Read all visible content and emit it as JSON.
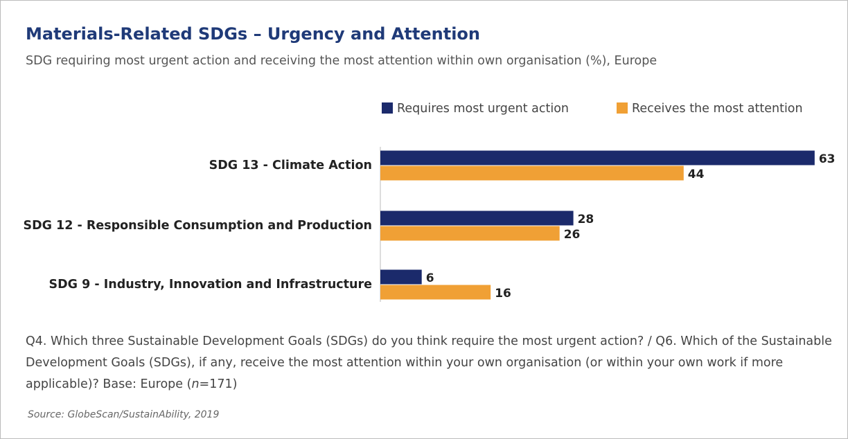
{
  "chart_data": {
    "type": "hbar",
    "title": "Materials-Related SDGs – Urgency and Attention",
    "subtitle": "SDG requiring most urgent action and receiving the most attention within own organisation (%), Europe",
    "categories": [
      "SDG 13 - Climate Action",
      "SDG 12 - Responsible Consumption and Production",
      "SDG 9 - Industry, Innovation and Infrastructure"
    ],
    "series": [
      {
        "name": "Requires most urgent action",
        "color": "#1b2a6b",
        "values": [
          63,
          28,
          6
        ]
      },
      {
        "name": "Receives the most attention",
        "color": "#f0a035",
        "values": [
          44,
          26,
          16
        ]
      }
    ],
    "note": [
      "Q4. Which three Sustainable Development Goals (SDGs) do you think require the most urgent action? / Q6. Which of the Sustainable Development Goals (SDGs), if any, receive the most attention within your own organisation (or within your own work if more applicable)?  Base: Europe (",
      "n",
      "=171)"
    ],
    "source": "Source: GlobeScan/SustainAbility, 2019"
  }
}
